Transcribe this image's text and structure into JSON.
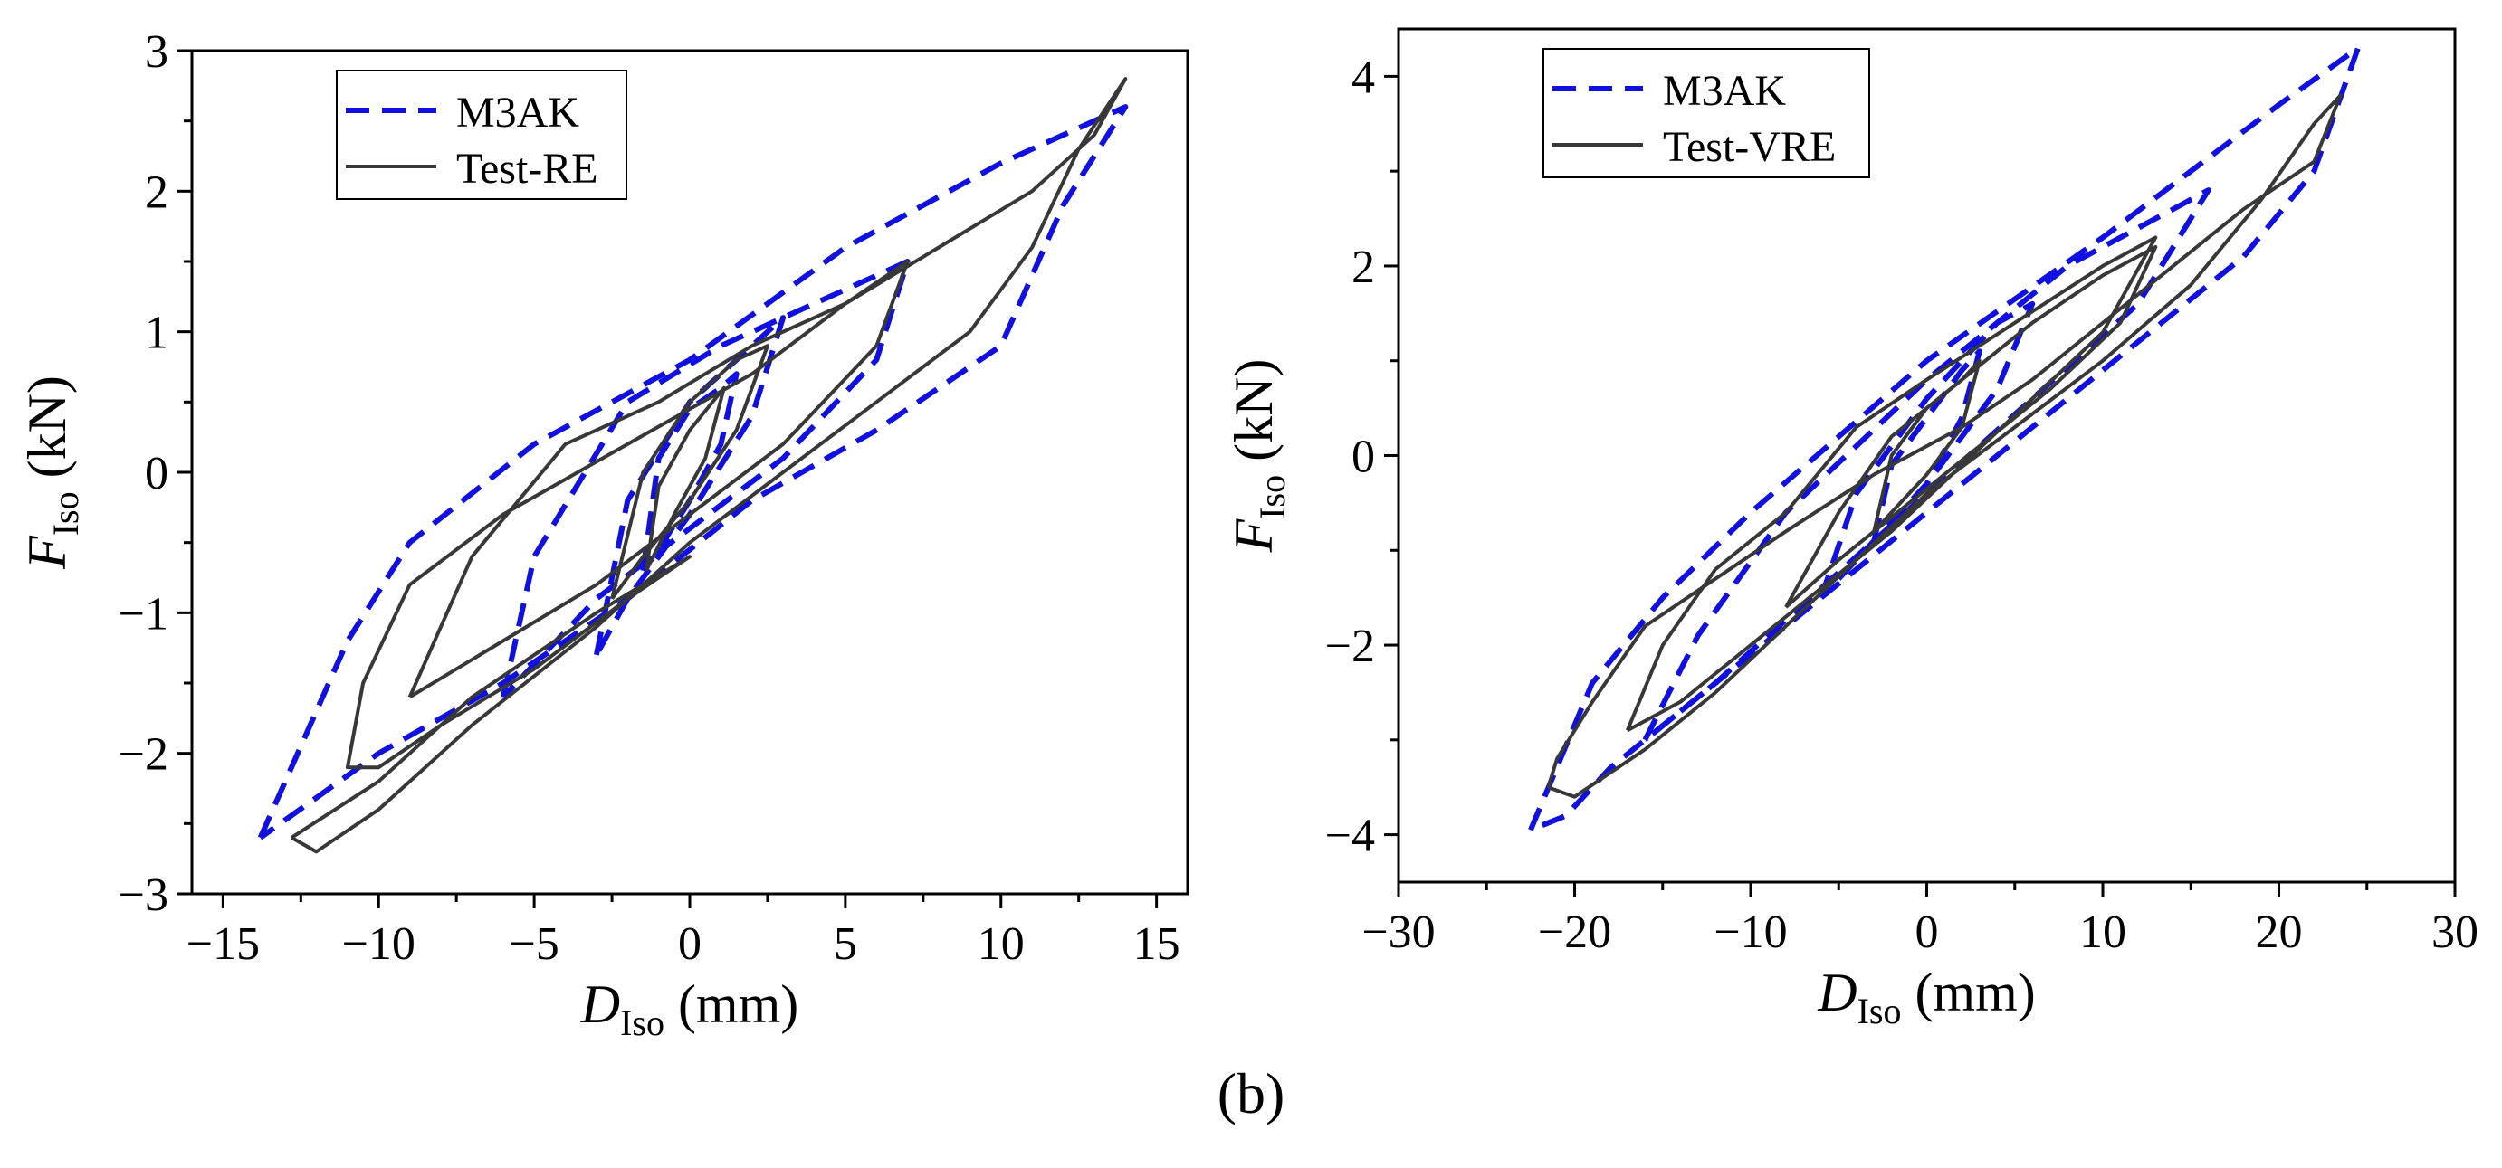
{
  "figure": {
    "panel_label": "(b)"
  },
  "chart_data": [
    {
      "type": "line",
      "xlabel": {
        "symbol": "D",
        "subscript": "Iso",
        "unit": "(mm)"
      },
      "ylabel": {
        "symbol": "F",
        "subscript": "Iso",
        "unit": "(kN)"
      },
      "xlim": [
        -16,
        16
      ],
      "ylim": [
        -3,
        3
      ],
      "xticks": [
        -15,
        -10,
        -5,
        0,
        5,
        10,
        15
      ],
      "xtick_labels": [
        "−15",
        "−10",
        "−5",
        "0",
        "5",
        "10",
        "15"
      ],
      "yticks": [
        -3,
        -2,
        -1,
        0,
        1,
        2,
        3
      ],
      "ytick_labels": [
        "−3",
        "−2",
        "−1",
        "0",
        "1",
        "2",
        "3"
      ],
      "legend_position": "top-left",
      "series": [
        {
          "name": "M3AK",
          "style": "dashed",
          "color": "#1010e0",
          "loops": [
            [
              [
                -1.5,
                -0.7
              ],
              [
                -1,
                0.1
              ],
              [
                0,
                0.45
              ],
              [
                1,
                0.6
              ],
              [
                1.5,
                0.7
              ],
              [
                1,
                0.2
              ],
              [
                0,
                -0.2
              ],
              [
                -1,
                -0.55
              ],
              [
                -1.5,
                -0.7
              ]
            ],
            [
              [
                -3,
                -1.3
              ],
              [
                -2,
                -0.2
              ],
              [
                0,
                0.5
              ],
              [
                2,
                0.9
              ],
              [
                3,
                1.1
              ],
              [
                2,
                0.4
              ],
              [
                0,
                -0.3
              ],
              [
                -2,
                -0.9
              ],
              [
                -3,
                -1.3
              ]
            ],
            [
              [
                -6,
                -1.6
              ],
              [
                -5,
                -0.6
              ],
              [
                -2,
                0.5
              ],
              [
                1,
                0.9
              ],
              [
                4,
                1.2
              ],
              [
                7,
                1.5
              ],
              [
                6,
                0.8
              ],
              [
                3,
                0.1
              ],
              [
                0,
                -0.4
              ],
              [
                -3,
                -0.9
              ],
              [
                -6,
                -1.6
              ]
            ],
            [
              [
                -13.8,
                -2.6
              ],
              [
                -11,
                -1.2
              ],
              [
                -9,
                -0.5
              ],
              [
                -5,
                0.2
              ],
              [
                0,
                0.8
              ],
              [
                5,
                1.6
              ],
              [
                10,
                2.2
              ],
              [
                14,
                2.6
              ],
              [
                12,
                1.9
              ],
              [
                10,
                0.9
              ],
              [
                6,
                0.3
              ],
              [
                2,
                -0.2
              ],
              [
                -2,
                -0.9
              ],
              [
                -6,
                -1.5
              ],
              [
                -10,
                -2.0
              ],
              [
                -13.8,
                -2.6
              ]
            ]
          ]
        },
        {
          "name": "Test-RE",
          "style": "solid",
          "color": "#383838",
          "loops": [
            [
              [
                -1.4,
                -0.7
              ],
              [
                -1,
                -0.1
              ],
              [
                0,
                0.3
              ],
              [
                1.1,
                0.6
              ],
              [
                0.5,
                0.1
              ],
              [
                -0.5,
                -0.3
              ],
              [
                -1.4,
                -0.7
              ]
            ],
            [
              [
                -2.5,
                -0.9
              ],
              [
                -1.5,
                0.0
              ],
              [
                0,
                0.5
              ],
              [
                1.5,
                0.8
              ],
              [
                2.5,
                0.9
              ],
              [
                1.5,
                0.3
              ],
              [
                0,
                -0.2
              ],
              [
                -1.5,
                -0.6
              ],
              [
                -2.5,
                -0.9
              ]
            ],
            [
              [
                -9,
                -1.6
              ],
              [
                -7,
                -0.6
              ],
              [
                -4,
                0.2
              ],
              [
                -1,
                0.5
              ],
              [
                2,
                0.9
              ],
              [
                5,
                1.2
              ],
              [
                7,
                1.5
              ],
              [
                6,
                0.9
              ],
              [
                3,
                0.2
              ],
              [
                0,
                -0.3
              ],
              [
                -3,
                -0.8
              ],
              [
                -6,
                -1.2
              ],
              [
                -9,
                -1.6
              ]
            ],
            [
              [
                -12.8,
                -2.6
              ],
              [
                -12,
                -2.7
              ],
              [
                -10,
                -2.4
              ],
              [
                -7,
                -1.8
              ],
              [
                -3,
                -1.1
              ],
              [
                0,
                -0.5
              ],
              [
                3,
                0.0
              ],
              [
                6,
                0.5
              ],
              [
                9,
                1.0
              ],
              [
                11,
                1.6
              ],
              [
                12.5,
                2.3
              ],
              [
                14,
                2.8
              ],
              [
                13,
                2.4
              ],
              [
                11,
                2.0
              ],
              [
                8,
                1.6
              ],
              [
                5,
                1.2
              ],
              [
                2,
                0.7
              ],
              [
                -2,
                0.2
              ],
              [
                -6,
                -0.3
              ],
              [
                -9,
                -0.8
              ],
              [
                -10.5,
                -1.5
              ],
              [
                -11,
                -2.1
              ],
              [
                -10,
                -2.1
              ],
              [
                -8,
                -1.8
              ],
              [
                -5,
                -1.4
              ],
              [
                -2,
                -0.9
              ],
              [
                0,
                -0.6
              ],
              [
                -3,
                -1.0
              ],
              [
                -7,
                -1.6
              ],
              [
                -10,
                -2.2
              ],
              [
                -12.8,
                -2.6
              ]
            ]
          ]
        }
      ]
    },
    {
      "type": "line",
      "xlabel": {
        "symbol": "D",
        "subscript": "Iso",
        "unit": "(mm)"
      },
      "ylabel": {
        "symbol": "F",
        "subscript": "Iso",
        "unit": "(kN)"
      },
      "xlim": [
        -30,
        30
      ],
      "ylim": [
        -4.5,
        4.5
      ],
      "xticks": [
        -30,
        -20,
        -10,
        0,
        10,
        20,
        30
      ],
      "xtick_labels": [
        "−30",
        "−20",
        "−10",
        "0",
        "10",
        "20",
        "30"
      ],
      "yticks": [
        -4,
        -2,
        0,
        2,
        4
      ],
      "ytick_labels": [
        "−4",
        "−2",
        "0",
        "2",
        "4"
      ],
      "legend_position": "top-left",
      "series": [
        {
          "name": "M3AK",
          "style": "dashed",
          "color": "#1010e0",
          "loops": [
            [
              [
                -3,
                -0.9
              ],
              [
                -2,
                -0.1
              ],
              [
                0,
                0.4
              ],
              [
                2,
                0.9
              ],
              [
                3,
                1.1
              ],
              [
                2,
                0.4
              ],
              [
                0,
                -0.3
              ],
              [
                -2,
                -0.7
              ],
              [
                -3,
                -0.9
              ]
            ],
            [
              [
                -6,
                -1.5
              ],
              [
                -4,
                -0.4
              ],
              [
                0,
                0.6
              ],
              [
                4,
                1.4
              ],
              [
                6,
                1.6
              ],
              [
                4,
                0.7
              ],
              [
                0,
                -0.3
              ],
              [
                -4,
                -1.1
              ],
              [
                -6,
                -1.5
              ]
            ],
            [
              [
                -16,
                -3.0
              ],
              [
                -13,
                -1.9
              ],
              [
                -8,
                -0.6
              ],
              [
                0,
                0.8
              ],
              [
                8,
                2.0
              ],
              [
                14,
                2.6
              ],
              [
                16,
                2.8
              ],
              [
                12,
                1.6
              ],
              [
                6,
                0.6
              ],
              [
                0,
                -0.4
              ],
              [
                -6,
                -1.4
              ],
              [
                -12,
                -2.4
              ],
              [
                -16,
                -3.0
              ]
            ],
            [
              [
                -22.5,
                -3.95
              ],
              [
                -19,
                -2.4
              ],
              [
                -15,
                -1.5
              ],
              [
                -10,
                -0.6
              ],
              [
                0,
                1.0
              ],
              [
                10,
                2.3
              ],
              [
                20,
                3.7
              ],
              [
                24.5,
                4.3
              ],
              [
                22,
                3.0
              ],
              [
                18,
                2.1
              ],
              [
                12,
                1.2
              ],
              [
                6,
                0.3
              ],
              [
                0,
                -0.6
              ],
              [
                -6,
                -1.5
              ],
              [
                -12,
                -2.4
              ],
              [
                -18,
                -3.3
              ],
              [
                -20.5,
                -3.8
              ],
              [
                -22.5,
                -3.95
              ]
            ]
          ]
        },
        {
          "name": "Test-VRE",
          "style": "solid",
          "color": "#383838",
          "loops": [
            [
              [
                -3,
                -0.8
              ],
              [
                -2,
                0.0
              ],
              [
                0,
                0.5
              ],
              [
                2,
                0.8
              ],
              [
                3,
                1.0
              ],
              [
                2,
                0.3
              ],
              [
                0,
                -0.2
              ],
              [
                -2,
                -0.6
              ],
              [
                -3,
                -0.8
              ]
            ],
            [
              [
                -8,
                -1.6
              ],
              [
                -5,
                -0.6
              ],
              [
                -2,
                0.2
              ],
              [
                2,
                0.8
              ],
              [
                6,
                1.4
              ],
              [
                10,
                1.9
              ],
              [
                13,
                2.2
              ],
              [
                11,
                1.4
              ],
              [
                7,
                0.7
              ],
              [
                3,
                0.1
              ],
              [
                -1,
                -0.5
              ],
              [
                -5,
                -1.1
              ],
              [
                -8,
                -1.6
              ]
            ],
            [
              [
                -17,
                -2.9
              ],
              [
                -15,
                -2.0
              ],
              [
                -12,
                -1.2
              ],
              [
                -8,
                -0.6
              ],
              [
                -4,
                0.3
              ],
              [
                0,
                0.8
              ],
              [
                5,
                1.4
              ],
              [
                10,
                2.0
              ],
              [
                13,
                2.3
              ],
              [
                10,
                1.3
              ],
              [
                6,
                0.6
              ],
              [
                2,
                -0.1
              ],
              [
                -2,
                -0.8
              ],
              [
                -6,
                -1.4
              ],
              [
                -10,
                -2.0
              ],
              [
                -14,
                -2.6
              ],
              [
                -17,
                -2.9
              ]
            ],
            [
              [
                -21.5,
                -3.5
              ],
              [
                -20,
                -3.6
              ],
              [
                -16,
                -3.1
              ],
              [
                -12,
                -2.5
              ],
              [
                -8,
                -1.8
              ],
              [
                -4,
                -1.1
              ],
              [
                0,
                -0.4
              ],
              [
                5,
                0.3
              ],
              [
                10,
                1.0
              ],
              [
                15,
                1.8
              ],
              [
                19,
                2.7
              ],
              [
                22,
                3.5
              ],
              [
                23.5,
                3.8
              ],
              [
                22,
                3.1
              ],
              [
                18,
                2.6
              ],
              [
                14,
                2.0
              ],
              [
                10,
                1.4
              ],
              [
                6,
                0.8
              ],
              [
                2,
                0.3
              ],
              [
                -3,
                -0.2
              ],
              [
                -8,
                -0.8
              ],
              [
                -12,
                -1.3
              ],
              [
                -16,
                -1.8
              ],
              [
                -19,
                -2.6
              ],
              [
                -21,
                -3.2
              ],
              [
                -21.5,
                -3.5
              ]
            ]
          ]
        }
      ]
    }
  ]
}
